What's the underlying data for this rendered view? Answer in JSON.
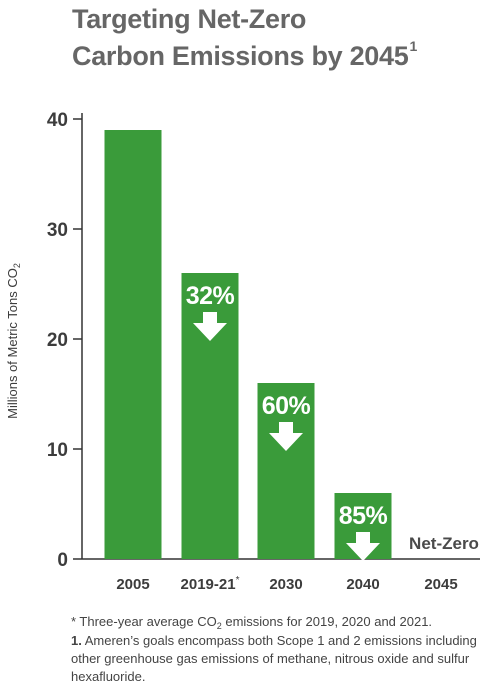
{
  "title": {
    "line1": "Targeting Net-Zero",
    "line2": "Carbon Emissions by 2045",
    "footnote_marker": "1"
  },
  "chart_data": {
    "type": "bar",
    "categories": [
      "2005",
      "2019-21",
      "2030",
      "2040",
      "2045"
    ],
    "category_markers": [
      "",
      "*",
      "",
      "",
      ""
    ],
    "values": [
      39,
      26,
      16,
      6,
      0
    ],
    "bar_labels": [
      "",
      "32%",
      "60%",
      "85%",
      "Net-Zero"
    ],
    "ylabel": "Millions of Metric Tons CO",
    "ylabel_subscript": "2",
    "ylim": [
      0,
      40
    ],
    "yticks": [
      0,
      10,
      20,
      30,
      40
    ],
    "grid": false,
    "bar_color": "#3a9b3a",
    "axis_color": "#333333",
    "label_color": "#ffffff"
  },
  "footnotes": {
    "note_star_prefix": "* Three-year average CO",
    "note_star_sub": "2",
    "note_star_suffix": " emissions for 2019, 2020 and 2021.",
    "note_one_number": "1.",
    "note_one_text": " Ameren’s goals encompass both Scope 1 and 2 emissions including other greenhouse gas emissions of methane, nitrous oxide and sulfur hexafluoride."
  }
}
